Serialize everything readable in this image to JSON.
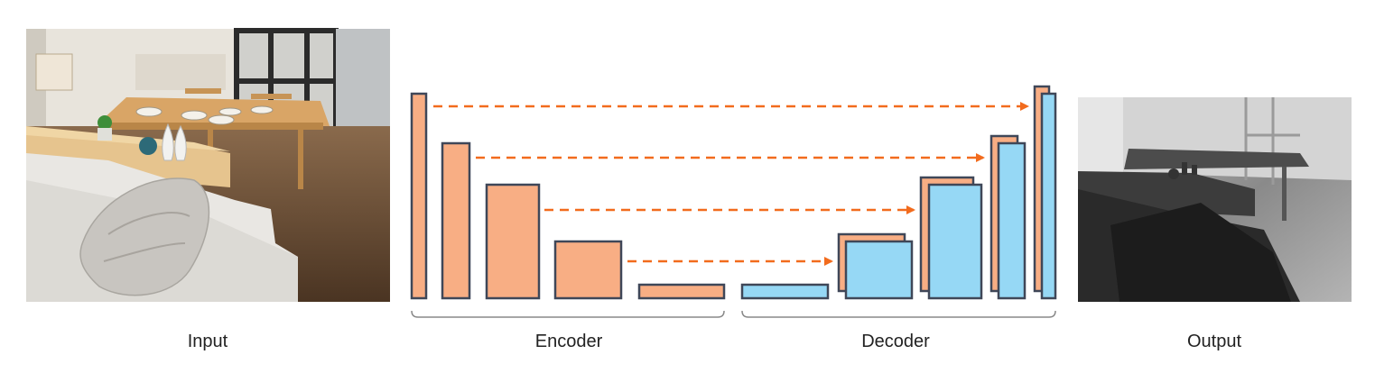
{
  "labels": {
    "input": "Input",
    "encoder": "Encoder",
    "decoder": "Decoder",
    "output": "Output"
  },
  "images": {
    "input": "rendered room scene: sofa with cushions, kitchen island with plant and vases, wooden dining table with plates",
    "output": "grayscale depth map of the same room scene"
  },
  "colors": {
    "encoder_fill": "#f8ae84",
    "decoder_fill": "#96d8f5",
    "block_stroke": "#3f4758",
    "skip_arrow": "#f26b1d",
    "bracket": "#888888"
  },
  "encoder_blocks": 5,
  "decoder_blocks": 5,
  "skip_connections": 4
}
